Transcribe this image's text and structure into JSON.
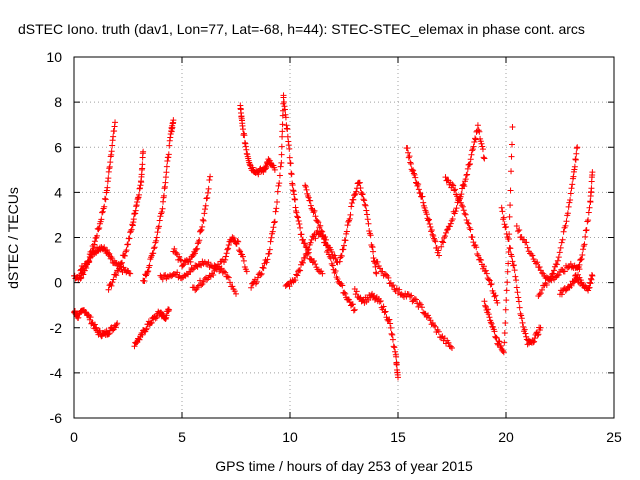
{
  "chart_data": {
    "type": "scatter",
    "title": "dSTEC Iono. truth (dav1, Lon=77, Lat=-68, h=44): STEC-STEC_elemax in phase cont. arcs",
    "xlabel": "GPS time / hours of day 253 of year 2015",
    "ylabel": "dSTEC  / TECUs",
    "xlim": [
      0,
      25
    ],
    "ylim": [
      -6,
      10
    ],
    "x_ticks": [
      0,
      5,
      10,
      15,
      20,
      25
    ],
    "y_ticks": [
      -6,
      -4,
      -2,
      0,
      2,
      4,
      6,
      8,
      10
    ],
    "grid": true,
    "marker": "+",
    "color": "#ff0000",
    "series": [
      {
        "arcs": [
          {
            "x": [
              0.0,
              0.3,
              0.6,
              0.9,
              1.2,
              1.5,
              1.7,
              1.9
            ],
            "y": [
              0.3,
              0.2,
              0.8,
              1.6,
              2.6,
              3.9,
              5.6,
              7.1
            ]
          },
          {
            "x": [
              0.0,
              0.2,
              0.5,
              0.8,
              1.1,
              1.4,
              1.7,
              2.0
            ],
            "y": [
              -1.3,
              -1.5,
              -1.2,
              -1.7,
              -2.2,
              -2.3,
              -2.1,
              -1.8
            ]
          },
          {
            "x": [
              0.3,
              0.6,
              0.9,
              1.2,
              1.5,
              1.8,
              2.2,
              2.6
            ],
            "y": [
              0.6,
              0.9,
              1.3,
              1.6,
              1.4,
              0.9,
              0.6,
              0.4
            ]
          },
          {
            "x": [
              1.6,
              2.0,
              2.4,
              2.7,
              2.9,
              3.1,
              3.2
            ],
            "y": [
              -0.3,
              0.5,
              1.4,
              2.5,
              3.5,
              4.4,
              5.8
            ]
          },
          {
            "x": [
              2.8,
              3.1,
              3.4,
              3.7,
              4.0,
              4.2,
              4.4
            ],
            "y": [
              -2.7,
              -2.4,
              -1.9,
              -1.6,
              -1.3,
              -1.6,
              -1.2
            ]
          },
          {
            "x": [
              3.2,
              3.5,
              3.8,
              4.1,
              4.3,
              4.5,
              4.6
            ],
            "y": [
              0.0,
              0.8,
              1.9,
              3.4,
              5.1,
              6.7,
              7.2
            ]
          },
          {
            "x": [
              4.0,
              4.5,
              5.0,
              5.5,
              6.0,
              6.5,
              7.0,
              7.5
            ],
            "y": [
              0.2,
              0.4,
              0.3,
              0.6,
              0.9,
              0.7,
              0.5,
              -0.5
            ]
          },
          {
            "x": [
              4.6,
              5.0,
              5.4,
              5.7,
              6.0,
              6.3
            ],
            "y": [
              1.5,
              0.8,
              1.0,
              1.6,
              2.8,
              4.7
            ]
          },
          {
            "x": [
              5.5,
              6.0,
              6.5,
              7.0,
              7.3,
              7.6,
              8.0
            ],
            "y": [
              -0.3,
              0.1,
              0.5,
              1.1,
              2.0,
              1.7,
              0.5
            ]
          },
          {
            "x": [
              7.7,
              7.8,
              8.0,
              8.2,
              8.5,
              8.8,
              9.0,
              9.3
            ],
            "y": [
              7.8,
              6.9,
              5.8,
              5.1,
              4.9,
              5.0,
              5.4,
              5.0
            ]
          },
          {
            "x": [
              8.2,
              8.6,
              9.0,
              9.3,
              9.6,
              9.7
            ],
            "y": [
              -0.2,
              0.3,
              1.2,
              2.8,
              5.4,
              8.3
            ]
          },
          {
            "x": [
              9.7,
              9.9,
              10.1,
              10.3,
              10.6,
              11.0,
              11.5
            ],
            "y": [
              8.3,
              6.5,
              4.5,
              3.1,
              1.8,
              1.0,
              0.4
            ]
          },
          {
            "x": [
              9.8,
              10.2,
              10.6,
              11.0,
              11.4,
              11.8,
              12.2
            ],
            "y": [
              -0.2,
              0.1,
              0.9,
              1.9,
              2.3,
              1.6,
              0.9
            ]
          },
          {
            "x": [
              10.7,
              11.0,
              11.4,
              11.8,
              12.2,
              12.6,
              13.0
            ],
            "y": [
              4.3,
              3.4,
              2.4,
              1.2,
              0.2,
              -0.6,
              -1.2
            ]
          },
          {
            "x": [
              12.3,
              12.6,
              12.9,
              13.2,
              13.5,
              13.8,
              14.0
            ],
            "y": [
              0.9,
              2.1,
              3.6,
              4.5,
              3.3,
              1.6,
              0.4
            ]
          },
          {
            "x": [
              13.0,
              13.4,
              13.8,
              14.2,
              14.6,
              14.9,
              15.0
            ],
            "y": [
              -0.4,
              -0.8,
              -0.6,
              -0.9,
              -1.7,
              -3.3,
              -4.2
            ]
          },
          {
            "x": [
              14.0,
              14.5,
              15.0,
              15.5,
              16.0,
              16.5,
              17.0,
              17.5
            ],
            "y": [
              0.9,
              0.2,
              -0.4,
              -0.6,
              -1.0,
              -1.7,
              -2.4,
              -2.9
            ]
          },
          {
            "x": [
              15.4,
              15.7,
              16.0,
              16.3,
              16.6,
              16.9
            ],
            "y": [
              6.0,
              4.9,
              4.1,
              3.2,
              2.1,
              1.2
            ]
          },
          {
            "x": [
              17.0,
              17.4,
              17.8,
              18.1,
              18.4,
              18.7,
              19.0
            ],
            "y": [
              1.6,
              2.6,
              3.6,
              4.5,
              5.6,
              6.9,
              5.5
            ]
          },
          {
            "x": [
              17.2,
              17.6,
              18.0,
              18.4,
              18.8,
              19.2,
              19.6
            ],
            "y": [
              4.6,
              4.2,
              3.3,
              2.1,
              1.0,
              0.2,
              -0.9
            ]
          },
          {
            "x": [
              19.0,
              19.3,
              19.6,
              19.9,
              20.1,
              20.3
            ],
            "y": [
              -0.8,
              -1.7,
              -2.6,
              -3.0,
              0.8,
              6.9
            ]
          },
          {
            "x": [
              19.8,
              20.1,
              20.4,
              20.7,
              21.0,
              21.3,
              21.6
            ],
            "y": [
              3.2,
              2.0,
              0.5,
              -1.5,
              -2.7,
              -2.5,
              -2.0
            ]
          },
          {
            "x": [
              20.5,
              21.0,
              21.5,
              22.0,
              22.5,
              23.0,
              23.4
            ],
            "y": [
              2.4,
              1.6,
              0.7,
              0.1,
              0.4,
              0.8,
              0.6
            ]
          },
          {
            "x": [
              21.5,
              22.0,
              22.4,
              22.8,
              23.1,
              23.3
            ],
            "y": [
              -0.5,
              0.1,
              1.0,
              2.7,
              4.6,
              6.0
            ]
          },
          {
            "x": [
              22.5,
              22.9,
              23.3,
              23.6,
              23.9,
              24.0
            ],
            "y": [
              -0.5,
              -0.2,
              0.3,
              1.6,
              3.5,
              4.9
            ]
          },
          {
            "x": [
              23.2,
              23.5,
              23.8,
              24.0
            ],
            "y": [
              0.3,
              0.0,
              -0.3,
              0.3
            ]
          }
        ]
      }
    ]
  }
}
